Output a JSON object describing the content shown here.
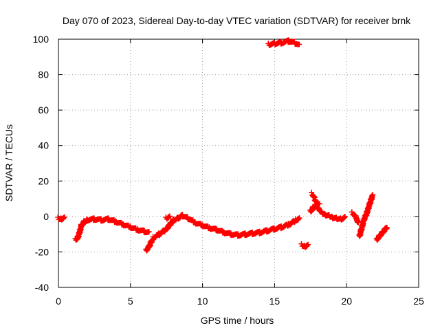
{
  "chart_data": {
    "type": "scatter",
    "title": "Day 070 of 2023, Sidereal Day-to-day VTEC variation (SDTVAR) for receiver brnk",
    "xlabel": "GPS time / hours",
    "ylabel": "SDTVAR / TECUs",
    "xlim": [
      0,
      25
    ],
    "ylim": [
      -40,
      100
    ],
    "xticks": [
      0,
      5,
      10,
      15,
      20,
      25
    ],
    "yticks": [
      -40,
      -20,
      0,
      20,
      40,
      60,
      80,
      100
    ],
    "grid": true,
    "marker": "+",
    "series": [
      {
        "name": "SDTVAR",
        "color": "#ff0000",
        "segments": [
          [
            [
              0.0,
              -1
            ],
            [
              0.2,
              -1.5
            ],
            [
              0.4,
              -0.5
            ]
          ],
          [
            [
              1.2,
              -13
            ],
            [
              1.35,
              -12
            ],
            [
              1.5,
              -8
            ],
            [
              1.6,
              -5
            ],
            [
              1.8,
              -3
            ],
            [
              2.0,
              -2
            ],
            [
              2.5,
              -1.5
            ],
            [
              3.0,
              -2
            ],
            [
              3.5,
              -1.5
            ],
            [
              4.0,
              -3
            ],
            [
              4.5,
              -4.5
            ],
            [
              5.0,
              -6
            ],
            [
              5.5,
              -7.5
            ],
            [
              6.0,
              -8.5
            ],
            [
              6.3,
              -9
            ]
          ],
          [
            [
              6.1,
              -19
            ],
            [
              6.3,
              -17
            ],
            [
              6.5,
              -13
            ]
          ],
          [
            [
              6.6,
              -12
            ],
            [
              7.0,
              -10
            ],
            [
              7.5,
              -7
            ],
            [
              7.8,
              -4
            ],
            [
              8.0,
              -2
            ],
            [
              8.3,
              -1
            ],
            [
              8.6,
              0.5
            ],
            [
              9.0,
              -1
            ],
            [
              9.5,
              -3.5
            ],
            [
              10.0,
              -5
            ],
            [
              10.5,
              -6.5
            ],
            [
              11.0,
              -7.5
            ],
            [
              11.5,
              -9
            ],
            [
              12.0,
              -10
            ],
            [
              12.5,
              -10.5
            ],
            [
              13.0,
              -10
            ],
            [
              13.5,
              -9.5
            ],
            [
              14.0,
              -9
            ],
            [
              14.5,
              -8
            ],
            [
              15.0,
              -7
            ],
            [
              15.5,
              -6
            ],
            [
              16.0,
              -4.5
            ],
            [
              16.5,
              -2
            ],
            [
              16.7,
              -1
            ]
          ],
          [
            [
              7.5,
              -1
            ],
            [
              7.7,
              0
            ]
          ],
          [
            [
              14.6,
              97
            ],
            [
              15.0,
              97.5
            ],
            [
              15.5,
              98
            ],
            [
              16.0,
              99
            ],
            [
              16.4,
              98
            ],
            [
              16.7,
              96.5
            ]
          ],
          [
            [
              16.9,
              -16
            ],
            [
              17.1,
              -17
            ],
            [
              17.3,
              -16
            ]
          ],
          [
            [
              17.5,
              3
            ],
            [
              17.7,
              5
            ],
            [
              17.9,
              6
            ],
            [
              18.1,
              4
            ],
            [
              18.3,
              2
            ],
            [
              18.5,
              1
            ],
            [
              18.8,
              0.5
            ],
            [
              19.0,
              -0.5
            ],
            [
              19.3,
              -1
            ],
            [
              19.6,
              -1.5
            ],
            [
              19.9,
              -0.5
            ]
          ],
          [
            [
              17.6,
              13
            ],
            [
              17.9,
              8
            ],
            [
              18.1,
              7
            ]
          ],
          [
            [
              20.4,
              2
            ],
            [
              20.7,
              -1
            ],
            [
              20.8,
              -4
            ]
          ],
          [
            [
              20.9,
              -11
            ],
            [
              21.0,
              -8
            ],
            [
              21.2,
              -2
            ],
            [
              21.4,
              2
            ],
            [
              21.6,
              7
            ],
            [
              21.8,
              12
            ]
          ],
          [
            [
              22.1,
              -13
            ],
            [
              22.3,
              -11
            ],
            [
              22.5,
              -9
            ],
            [
              22.8,
              -6
            ]
          ]
        ]
      }
    ]
  }
}
